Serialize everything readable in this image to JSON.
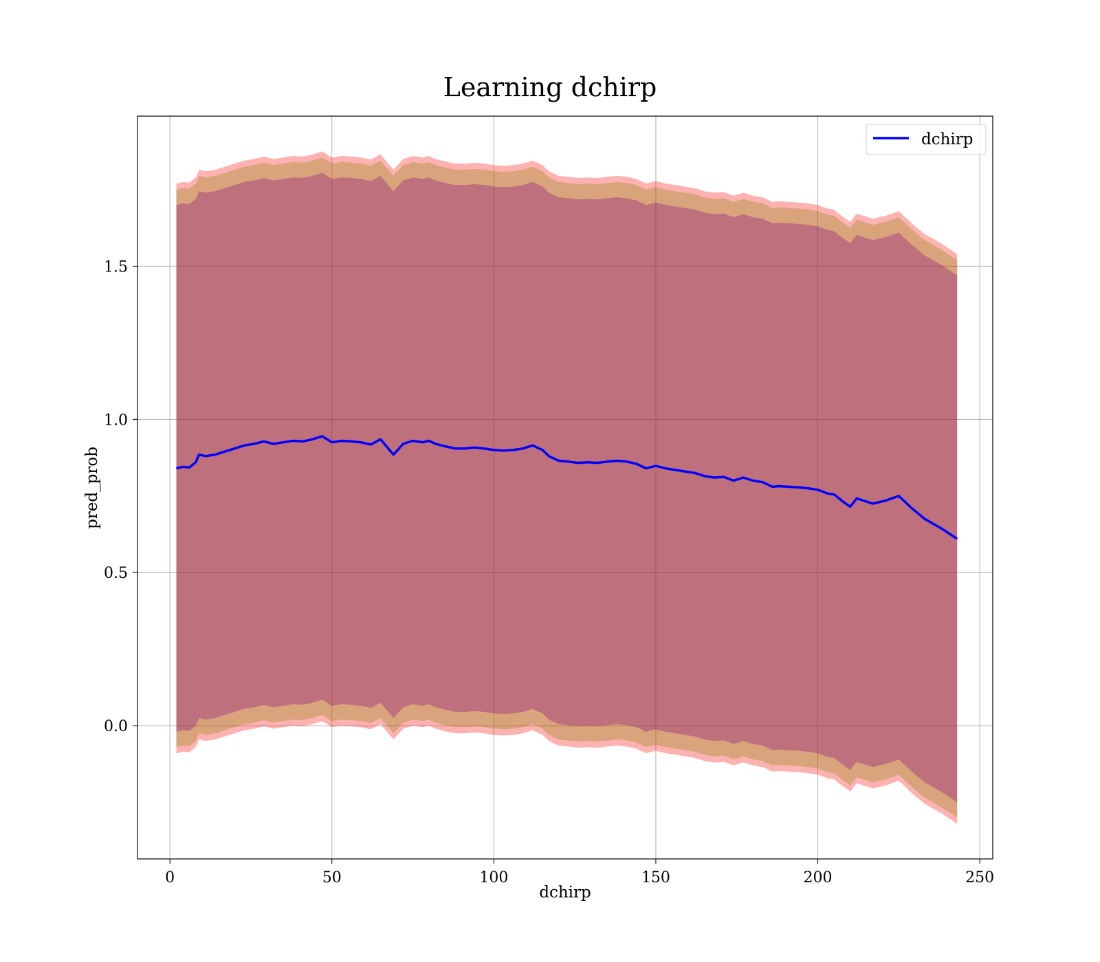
{
  "chart_data": {
    "type": "line",
    "title": "Learning dchirp",
    "xlabel": "dchirp",
    "ylabel": "pred_prob",
    "xlim": [
      -10,
      254
    ],
    "ylim": [
      -0.435,
      1.99
    ],
    "xticks": [
      0,
      50,
      100,
      150,
      200,
      250
    ],
    "xtick_labels": [
      "0",
      "50",
      "100",
      "150",
      "200",
      "250"
    ],
    "yticks": [
      0.0,
      0.5,
      1.0,
      1.5
    ],
    "ytick_labels": [
      "0.0",
      "0.5",
      "1.0",
      "1.5"
    ],
    "grid": true,
    "legend": {
      "position": "top-right",
      "entries": [
        "dchirp"
      ]
    },
    "colors": {
      "line": "#0000ff",
      "outer_band": "#ff0000",
      "mid_band": "#808000",
      "inner_band": "#800080",
      "grid": "#b0b0b0"
    },
    "series": [
      {
        "name": "dchirp",
        "x": [
          2,
          4,
          6,
          8,
          9,
          11,
          14,
          17,
          20,
          23,
          26,
          29,
          32,
          35,
          38,
          41,
          44,
          47,
          50,
          53,
          56,
          59,
          62,
          65,
          67,
          69,
          72,
          75,
          78,
          80,
          82,
          85,
          88,
          91,
          94,
          97,
          100,
          103,
          106,
          109,
          112,
          115,
          117,
          120,
          123,
          126,
          129,
          132,
          135,
          138,
          141,
          144,
          147,
          150,
          153,
          156,
          159,
          162,
          165,
          168,
          171,
          174,
          177,
          180,
          183,
          186,
          188,
          191,
          194,
          197,
          200,
          203,
          205,
          208,
          210,
          212,
          214,
          217,
          221,
          225,
          229,
          233,
          238,
          243
        ],
        "values": [
          0.84,
          0.845,
          0.843,
          0.86,
          0.885,
          0.88,
          0.885,
          0.895,
          0.905,
          0.915,
          0.92,
          0.928,
          0.92,
          0.925,
          0.93,
          0.928,
          0.935,
          0.945,
          0.925,
          0.93,
          0.928,
          0.925,
          0.918,
          0.935,
          0.91,
          0.885,
          0.92,
          0.93,
          0.925,
          0.93,
          0.92,
          0.912,
          0.905,
          0.905,
          0.908,
          0.905,
          0.9,
          0.898,
          0.9,
          0.905,
          0.915,
          0.9,
          0.88,
          0.865,
          0.862,
          0.858,
          0.86,
          0.858,
          0.862,
          0.865,
          0.862,
          0.855,
          0.84,
          0.848,
          0.84,
          0.835,
          0.83,
          0.825,
          0.815,
          0.81,
          0.812,
          0.8,
          0.81,
          0.8,
          0.795,
          0.78,
          0.782,
          0.78,
          0.778,
          0.775,
          0.77,
          0.758,
          0.755,
          0.73,
          0.715,
          0.742,
          0.735,
          0.725,
          0.735,
          0.75,
          0.71,
          0.675,
          0.645,
          0.61
        ]
      }
    ],
    "bands": [
      {
        "name": "outer",
        "half_width_start": 0.93,
        "half_width_end": 0.93
      },
      {
        "name": "mid",
        "half_width_start": 0.91,
        "half_width_end": 0.91
      },
      {
        "name": "inner",
        "half_width_start": 0.86,
        "half_width_end": 0.86
      }
    ]
  }
}
